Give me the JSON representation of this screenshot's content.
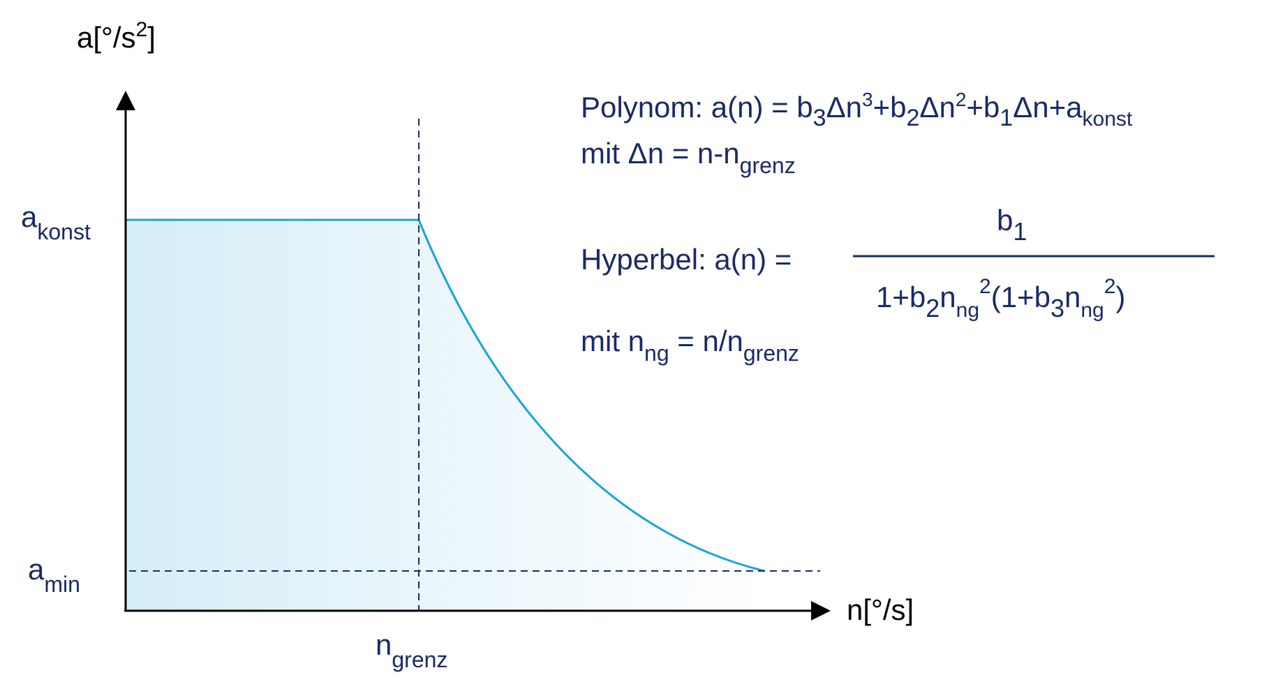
{
  "colors": {
    "text": "#1a2a66",
    "axis": "#000000",
    "curve": "#1aa3d9",
    "fill_start": "#d6eef7",
    "fill_end": "#ffffff"
  },
  "axes": {
    "y_label_main": "a[°/s",
    "y_label_sup": "2",
    "y_label_close": "]",
    "x_label": "n[°/s]"
  },
  "ticks": {
    "a_konst_main": "a",
    "a_konst_sub": "konst",
    "a_min_main": "a",
    "a_min_sub": "min",
    "n_grenz_main": "n",
    "n_grenz_sub": "grenz"
  },
  "formulas": {
    "polynom": {
      "prefix": "Polynom: a(n) = b",
      "b3_sub": "3",
      "t1": "Δn",
      "t1_sup": "3",
      "t2": "+b",
      "b2_sub": "2",
      "t3": "Δn",
      "t3_sup": "2",
      "t4": "+b",
      "b1_sub": "1",
      "t5": "Δn+a",
      "ak_sub": "konst"
    },
    "polynom_def": {
      "prefix": "mit Δn = n-n",
      "sub": "grenz"
    },
    "hyperbel": {
      "label": "Hyperbel: a(n) =",
      "num_main": "b",
      "num_sub": "1",
      "den_1": "1+b",
      "den_b2_sub": "2",
      "den_2": "n",
      "den_ng_sub": "ng",
      "den_sup1": "2",
      "den_3": "(1+b",
      "den_b3_sub": "3",
      "den_4": "n",
      "den_ng_sub2": "ng",
      "den_sup2": "2",
      "den_5": ")"
    },
    "hyperbel_def": {
      "prefix": "mit n",
      "sub1": "ng",
      "middle": " = n/n",
      "sub2": "grenz"
    }
  }
}
